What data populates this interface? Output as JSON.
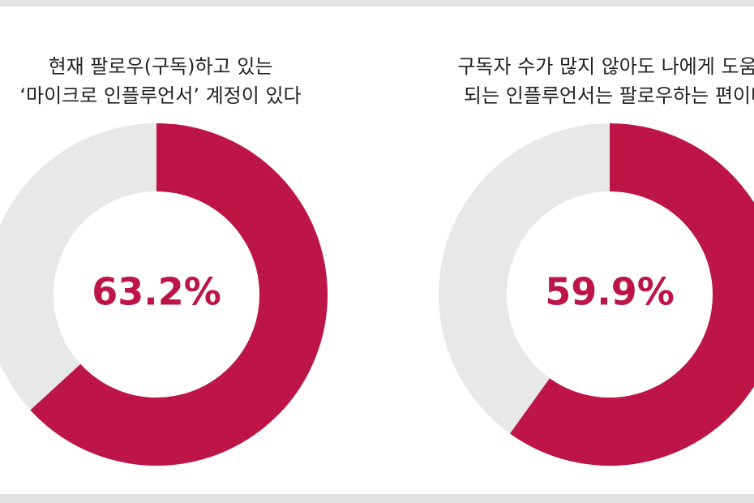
{
  "chart_data": [
    {
      "type": "donut",
      "title": [
        "현재 팔로우(구독)하고 있는",
        "‘마이크로 인플루언서’ 계정이 있다"
      ],
      "values": [
        63.2
      ],
      "value_labels": [
        "63.2%"
      ],
      "color": "#be1548",
      "track_color": "#e8e8e8"
    },
    {
      "type": "donut",
      "title": [
        "구독자 수가 많지 않아도 나에게 도움이",
        "되는 인플루언서는 팔로우하는 편이다"
      ],
      "values": [
        59.9
      ],
      "value_labels": [
        "59.9%"
      ],
      "color": "#be1548",
      "track_color": "#e8e8e8"
    }
  ]
}
